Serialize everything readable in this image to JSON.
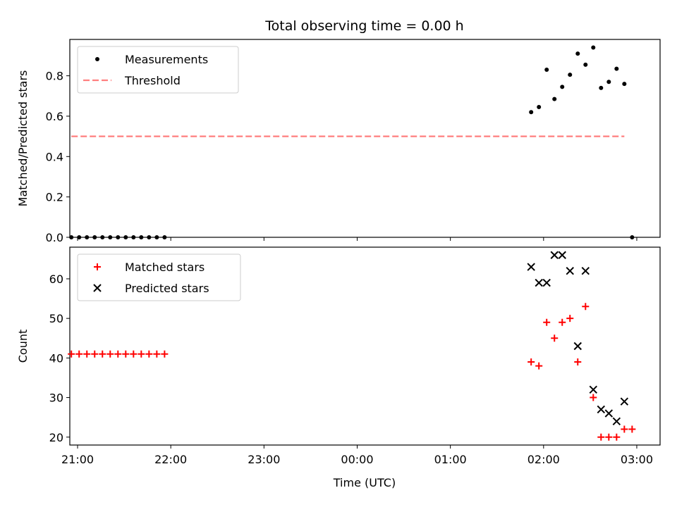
{
  "chart_data": {
    "title": "Total observing time = 0.00 h",
    "xlabel": "Time (UTC)",
    "x_ticks": [
      "21:00",
      "22:00",
      "23:00",
      "00:00",
      "01:00",
      "02:00",
      "03:00"
    ],
    "x_range": [
      "20:55",
      "03:15"
    ],
    "panels": [
      {
        "type": "scatter",
        "ylabel": "Matched/Predicted stars",
        "ylim": [
          0,
          0.98
        ],
        "y_ticks": [
          "0.0",
          "0.2",
          "0.4",
          "0.6",
          "0.8"
        ],
        "legend_placement": "top-left",
        "series": [
          {
            "name": "Measurements",
            "marker": "dot",
            "color": "#000000",
            "x": [
              "20:56",
              "21:01",
              "21:06",
              "21:11",
              "21:16",
              "21:21",
              "21:26",
              "21:31",
              "21:36",
              "21:41",
              "21:46",
              "21:51",
              "21:56",
              "01:52",
              "01:57",
              "02:02",
              "02:07",
              "02:12",
              "02:17",
              "02:22",
              "02:27",
              "02:32",
              "02:37",
              "02:42",
              "02:47",
              "02:52",
              "02:57"
            ],
            "y": [
              0,
              0,
              0,
              0,
              0,
              0,
              0,
              0,
              0,
              0,
              0,
              0,
              0,
              0.62,
              0.645,
              0.83,
              0.685,
              0.745,
              0.805,
              0.91,
              0.855,
              0.94,
              0.74,
              0.77,
              0.835,
              0.76,
              0
            ]
          },
          {
            "name": "Threshold",
            "line": "dashed",
            "color": "#ff7f7f",
            "x": [
              "20:56",
              "02:52"
            ],
            "y": [
              0.5,
              0.5
            ]
          }
        ]
      },
      {
        "type": "scatter",
        "ylabel": "Count",
        "ylim": [
          18,
          68
        ],
        "y_ticks": [
          "20",
          "30",
          "40",
          "50",
          "60"
        ],
        "legend_placement": "top-left",
        "series": [
          {
            "name": "Matched stars",
            "marker": "plus",
            "color": "#ff0000",
            "x": [
              "20:56",
              "21:01",
              "21:06",
              "21:11",
              "21:16",
              "21:21",
              "21:26",
              "21:31",
              "21:36",
              "21:41",
              "21:46",
              "21:51",
              "21:56",
              "01:52",
              "01:57",
              "02:02",
              "02:07",
              "02:12",
              "02:17",
              "02:22",
              "02:27",
              "02:32",
              "02:37",
              "02:42",
              "02:47",
              "02:52",
              "02:57"
            ],
            "y": [
              41,
              41,
              41,
              41,
              41,
              41,
              41,
              41,
              41,
              41,
              41,
              41,
              41,
              39,
              38,
              49,
              45,
              49,
              50,
              39,
              53,
              30,
              20,
              20,
              20,
              22,
              22
            ]
          },
          {
            "name": "Predicted stars",
            "marker": "x",
            "color": "#000000",
            "x": [
              "01:52",
              "01:57",
              "02:02",
              "02:07",
              "02:12",
              "02:17",
              "02:22",
              "02:27",
              "02:32",
              "02:37",
              "02:42",
              "02:47",
              "02:52"
            ],
            "y": [
              63,
              59,
              59,
              66,
              66,
              62,
              43,
              62,
              32,
              27,
              26,
              24,
              29
            ]
          }
        ]
      }
    ]
  }
}
